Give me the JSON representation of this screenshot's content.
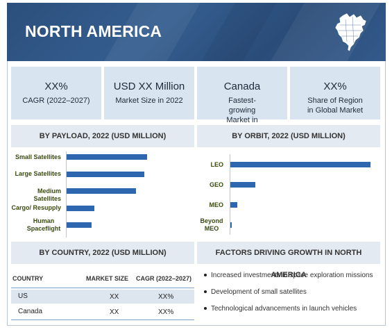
{
  "banner": {
    "title": "NORTH AMERICA",
    "map_icon": "north-america-map-icon"
  },
  "kpis": [
    {
      "big": "XX%",
      "small": "CAGR (2022–2027)"
    },
    {
      "big": "USD XX Million",
      "small": "Market Size in 2022"
    },
    {
      "big": "Canada",
      "small": "Fastest-growing Market in Region"
    },
    {
      "big": "XX%",
      "small": "Share of Region in Global Market"
    }
  ],
  "payload": {
    "title": "BY PAYLOAD, 2022 (USD MILLION)",
    "chart_data": {
      "type": "bar",
      "orientation": "horizontal",
      "categories": [
        "Small Satellites",
        "Large Satellites",
        "Medium Satellites",
        "Cargo/ Resupply",
        "Human Spaceflight"
      ],
      "values": [
        100,
        96,
        86,
        34,
        31
      ],
      "title": "BY PAYLOAD, 2022 (USD MILLION)",
      "xlim": [
        0,
        105
      ],
      "grid": false,
      "color": "#2f66b0"
    }
  },
  "orbit": {
    "title": "BY ORBIT, 2022 (USD MILLION)",
    "chart_data": {
      "type": "bar",
      "orientation": "horizontal",
      "categories": [
        "LEO",
        "GEO",
        "MEO",
        "Beyond MEO"
      ],
      "values": [
        100,
        18,
        5,
        1
      ],
      "title": "BY ORBIT, 2022 (USD MILLION)",
      "xlim": [
        0,
        100
      ],
      "grid": false,
      "color": "#2f66b0"
    }
  },
  "country": {
    "title": "BY COUNTRY, 2022 (USD MILLION)",
    "headers": [
      "COUNTRY",
      "MARKET SIZE",
      "CAGR (2022–2027)"
    ],
    "rows": [
      [
        "US",
        "XX",
        "XX%"
      ],
      [
        "Canada",
        "XX",
        "XX%"
      ]
    ]
  },
  "factors": {
    "title": "FACTORS DRIVING GROWTH IN NORTH AMERICA",
    "items": [
      "Increased investments in space exploration missions",
      "Development of small satellites",
      "Technological advancements in launch vehicles"
    ]
  },
  "colors": {
    "banner": "#2c4f7c",
    "kpi_bg": "#d8e4ef",
    "section_bg": "#e4eaf1",
    "bar": "#2f66b0"
  }
}
